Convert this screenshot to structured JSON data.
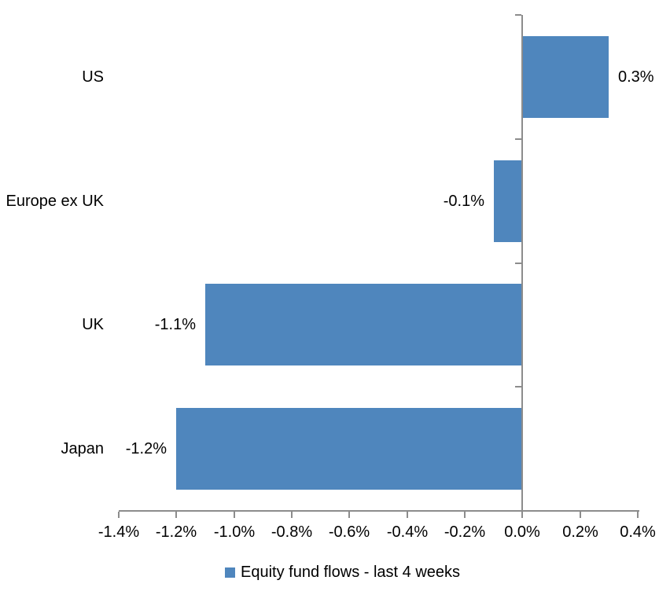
{
  "chart_data": {
    "type": "bar",
    "orientation": "horizontal",
    "title": "",
    "categories": [
      "US",
      "Europe ex UK",
      "UK",
      "Japan"
    ],
    "series": [
      {
        "name": "Equity fund flows - last 4 weeks",
        "values": [
          0.3,
          -0.1,
          -1.1,
          -1.2
        ],
        "data_labels": [
          "0.3%",
          "-0.1%",
          "-1.1%",
          "-1.2%"
        ]
      }
    ],
    "xlim": [
      -1.4,
      0.4
    ],
    "x_ticks": [
      -1.4,
      -1.2,
      -1.0,
      -0.8,
      -0.6,
      -0.4,
      -0.2,
      0.0,
      0.2,
      0.4
    ],
    "x_tick_labels": [
      "-1.4%",
      "-1.2%",
      "-1.0%",
      "-0.8%",
      "-0.6%",
      "-0.4%",
      "-0.2%",
      "0.0%",
      "0.2%",
      "0.4%"
    ],
    "grid": false,
    "legend_position": "bottom",
    "colors": {
      "bar": "#4F86BD",
      "axis": "#8C8C8C",
      "text": "#000000",
      "background": "#FFFFFF"
    }
  }
}
